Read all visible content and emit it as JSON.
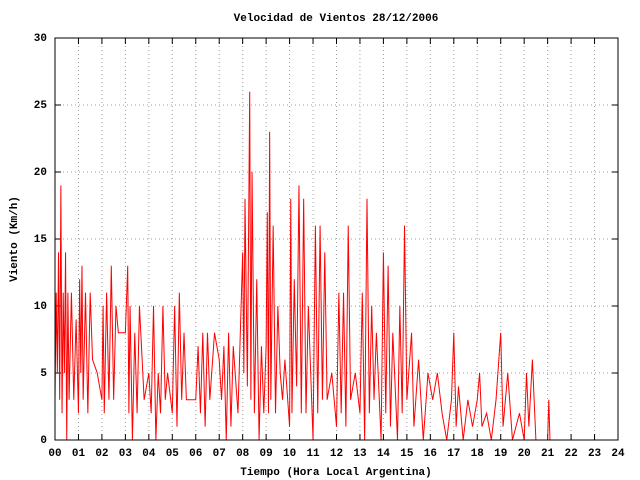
{
  "chart_data": {
    "type": "line",
    "title": "Velocidad de Vientos 28/12/2006",
    "x_label": "Tiempo (Hora Local Argentina)",
    "y_label": "Viento (Km/h)",
    "xlim": [
      0,
      24
    ],
    "ylim": [
      0,
      30
    ],
    "xticks": [
      {
        "value": 0,
        "label": "00"
      },
      {
        "value": 1,
        "label": "01"
      },
      {
        "value": 2,
        "label": "02"
      },
      {
        "value": 3,
        "label": "03"
      },
      {
        "value": 4,
        "label": "04"
      },
      {
        "value": 5,
        "label": "05"
      },
      {
        "value": 6,
        "label": "06"
      },
      {
        "value": 7,
        "label": "07"
      },
      {
        "value": 8,
        "label": "08"
      },
      {
        "value": 9,
        "label": "09"
      },
      {
        "value": 10,
        "label": "10"
      },
      {
        "value": 11,
        "label": "11"
      },
      {
        "value": 12,
        "label": "12"
      },
      {
        "value": 13,
        "label": "13"
      },
      {
        "value": 14,
        "label": "14"
      },
      {
        "value": 15,
        "label": "15"
      },
      {
        "value": 16,
        "label": "16"
      },
      {
        "value": 17,
        "label": "17"
      },
      {
        "value": 18,
        "label": "18"
      },
      {
        "value": 19,
        "label": "19"
      },
      {
        "value": 20,
        "label": "20"
      },
      {
        "value": 21,
        "label": "21"
      },
      {
        "value": 22,
        "label": "22"
      },
      {
        "value": 23,
        "label": "23"
      },
      {
        "value": 24,
        "label": "24"
      }
    ],
    "yticks": [
      0,
      5,
      10,
      15,
      20,
      25,
      30
    ],
    "grid": true,
    "x": [
      0,
      0.05,
      0.1,
      0.15,
      0.2,
      0.25,
      0.3,
      0.35,
      0.4,
      0.45,
      0.5,
      0.55,
      0.6,
      0.7,
      0.8,
      0.9,
      1.0,
      1.05,
      1.1,
      1.15,
      1.2,
      1.3,
      1.4,
      1.5,
      1.6,
      1.8,
      2.0,
      2.05,
      2.1,
      2.2,
      2.3,
      2.4,
      2.5,
      2.6,
      2.7,
      3.0,
      3.1,
      3.15,
      3.2,
      3.3,
      3.4,
      3.5,
      3.6,
      3.8,
      4.0,
      4.1,
      4.2,
      4.3,
      4.4,
      4.5,
      4.6,
      4.7,
      4.8,
      5.0,
      5.1,
      5.2,
      5.3,
      5.4,
      5.5,
      5.6,
      6.0,
      6.1,
      6.2,
      6.3,
      6.4,
      6.5,
      6.6,
      6.8,
      7.0,
      7.1,
      7.2,
      7.3,
      7.4,
      7.5,
      7.6,
      7.8,
      7.9,
      8.0,
      8.05,
      8.1,
      8.2,
      8.3,
      8.35,
      8.4,
      8.5,
      8.6,
      8.7,
      8.8,
      8.9,
      9.0,
      9.05,
      9.1,
      9.15,
      9.2,
      9.3,
      9.4,
      9.5,
      9.6,
      9.7,
      9.8,
      10.0,
      10.05,
      10.1,
      10.2,
      10.3,
      10.4,
      10.5,
      10.6,
      10.7,
      10.8,
      11.0,
      11.1,
      11.2,
      11.3,
      11.4,
      11.5,
      11.6,
      11.8,
      12.0,
      12.1,
      12.2,
      12.3,
      12.4,
      12.5,
      12.6,
      12.8,
      13.0,
      13.1,
      13.2,
      13.3,
      13.4,
      13.5,
      13.6,
      13.7,
      13.9,
      14.0,
      14.1,
      14.2,
      14.3,
      14.4,
      14.6,
      14.7,
      14.8,
      14.9,
      15.0,
      15.2,
      15.3,
      15.5,
      15.7,
      15.9,
      16.1,
      16.3,
      16.5,
      16.7,
      16.9,
      17.0,
      17.1,
      17.2,
      17.4,
      17.6,
      17.8,
      18.0,
      18.1,
      18.2,
      18.4,
      18.6,
      18.8,
      19.0,
      19.1,
      19.3,
      19.5,
      19.8,
      20.0,
      20.1,
      20.2,
      20.35,
      20.5,
      21.0,
      21.05,
      21.1
    ],
    "series": [
      {
        "color": "#ff0000",
        "values": [
          3,
          11,
          5,
          14,
          3,
          19,
          2,
          11,
          5,
          14,
          0,
          11,
          3,
          11,
          3,
          9,
          2,
          12,
          5,
          13,
          3,
          11,
          2,
          11,
          6,
          5,
          3,
          10,
          2,
          11,
          3,
          13,
          3,
          10,
          8,
          8,
          13,
          2,
          10,
          0,
          8,
          2,
          10,
          3,
          5,
          2,
          10,
          0,
          5,
          2,
          10,
          3,
          5,
          2,
          10,
          1,
          11,
          3,
          8,
          3,
          3,
          7,
          2,
          8,
          1,
          8,
          3,
          8,
          6,
          3,
          7,
          0,
          8,
          1,
          7,
          2,
          8,
          14,
          5,
          18,
          4,
          26,
          3,
          20,
          2,
          12,
          0,
          7,
          2,
          7,
          17,
          2,
          23,
          3,
          16,
          2,
          10,
          5,
          3,
          6,
          1,
          18,
          2,
          12,
          4,
          19,
          2,
          18,
          2,
          10,
          0,
          16,
          2,
          16,
          3,
          14,
          3,
          5,
          1,
          11,
          2,
          11,
          1,
          16,
          3,
          5,
          2,
          11,
          0,
          18,
          2,
          10,
          3,
          8,
          0,
          14,
          2,
          13,
          1,
          8,
          0,
          10,
          2,
          16,
          3,
          8,
          1,
          6,
          0,
          5,
          3,
          5,
          2,
          0,
          3,
          8,
          1,
          4,
          0,
          3,
          1,
          3,
          5,
          1,
          2,
          0,
          3,
          8,
          1,
          5,
          0,
          2,
          0,
          5,
          1,
          6,
          0,
          0,
          3,
          0
        ]
      }
    ]
  }
}
